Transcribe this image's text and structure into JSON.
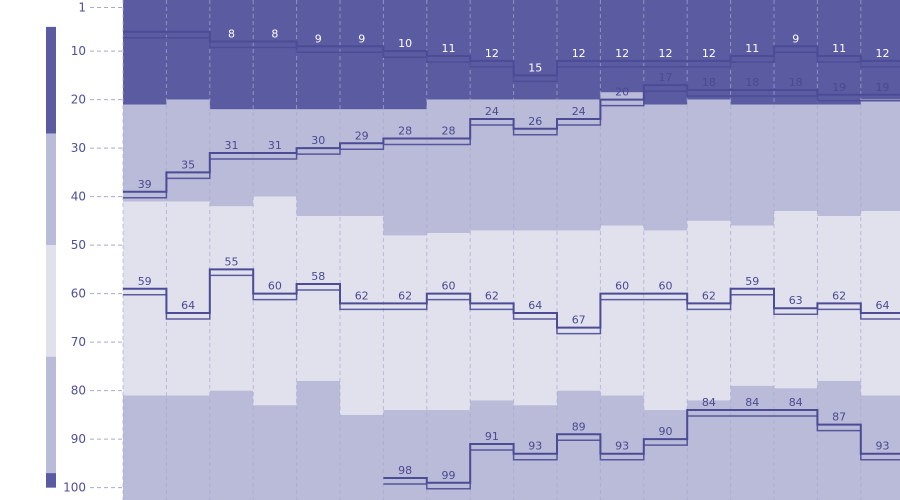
{
  "chart_data": {
    "type": "bar",
    "y_axis": {
      "range": [
        1,
        100
      ],
      "inverted": true,
      "ticks": [
        "1",
        "10",
        "20",
        "30",
        "40",
        "50",
        "60",
        "70",
        "80",
        "90",
        "100"
      ]
    },
    "grid": {
      "vertical_dashed": true,
      "horizontal_dashed": true
    },
    "colors": {
      "band_top": "#5b5ba2",
      "band_mid": "#babad9",
      "band_center": "#e1e1ee",
      "line": "#4b4b96",
      "text": "#4a4a92",
      "axis_text": "#4f4f9a"
    },
    "key_bands": [
      {
        "from": 5,
        "to": 27,
        "color": "#5b5ba2"
      },
      {
        "from": 27,
        "to": 50,
        "color": "#babad9"
      },
      {
        "from": 50,
        "to": 73,
        "color": "#e1e1ee"
      },
      {
        "from": 73,
        "to": 97,
        "color": "#babad9"
      },
      {
        "from": 97,
        "to": 100,
        "color": "#5b5ba2"
      }
    ],
    "columns": 18,
    "band_boundaries": {
      "dark_to_mid": [
        21,
        20,
        22,
        22,
        22,
        22,
        22,
        20,
        20,
        20,
        20,
        18.5,
        21,
        20,
        21,
        21,
        21,
        20
      ],
      "mid_to_light": [
        41,
        41,
        42,
        40,
        44,
        44,
        48,
        47.5,
        47,
        47,
        47,
        46,
        47,
        45,
        46,
        43,
        44,
        43
      ],
      "light_to_mid": [
        81,
        81,
        80,
        83,
        78,
        85,
        84,
        84,
        82,
        83,
        80,
        81,
        84,
        82,
        79,
        79.5,
        78,
        81
      ]
    },
    "series": [
      {
        "values": [
          6,
          6,
          8,
          8,
          9,
          9,
          10,
          11,
          12,
          15,
          12,
          12,
          12,
          12,
          11,
          9,
          11,
          12
        ],
        "labels": [
          "",
          "",
          "8",
          "8",
          "9",
          "9",
          "10",
          "11",
          "12",
          "15",
          "12",
          "12",
          "12",
          "12",
          "11",
          "9",
          "11",
          "12"
        ]
      },
      {
        "values": [
          39,
          35,
          31,
          31,
          30,
          29,
          28,
          28,
          24,
          26,
          24,
          20,
          17,
          18,
          18,
          18,
          19,
          19
        ],
        "labels": [
          "39",
          "35",
          "31",
          "31",
          "30",
          "29",
          "28",
          "28",
          "24",
          "26",
          "24",
          "20",
          "17",
          "18",
          "18",
          "18",
          "19",
          "19"
        ]
      },
      {
        "values": [
          59,
          64,
          55,
          60,
          58,
          62,
          62,
          60,
          62,
          64,
          67,
          60,
          60,
          62,
          59,
          63,
          62,
          64
        ],
        "labels": [
          "59",
          "64",
          "55",
          "60",
          "58",
          "62",
          "62",
          "60",
          "62",
          "64",
          "67",
          "60",
          "60",
          "62",
          "59",
          "63",
          "62",
          "64"
        ]
      },
      {
        "values": [
          null,
          null,
          null,
          null,
          null,
          null,
          98,
          99,
          91,
          93,
          89,
          93,
          90,
          84,
          84,
          84,
          87,
          93
        ],
        "labels": [
          "",
          "",
          "",
          "",
          "",
          "",
          "98",
          "99",
          "91",
          "93",
          "89",
          "93",
          "90",
          "84",
          "84",
          "84",
          "87",
          "93"
        ]
      }
    ]
  }
}
